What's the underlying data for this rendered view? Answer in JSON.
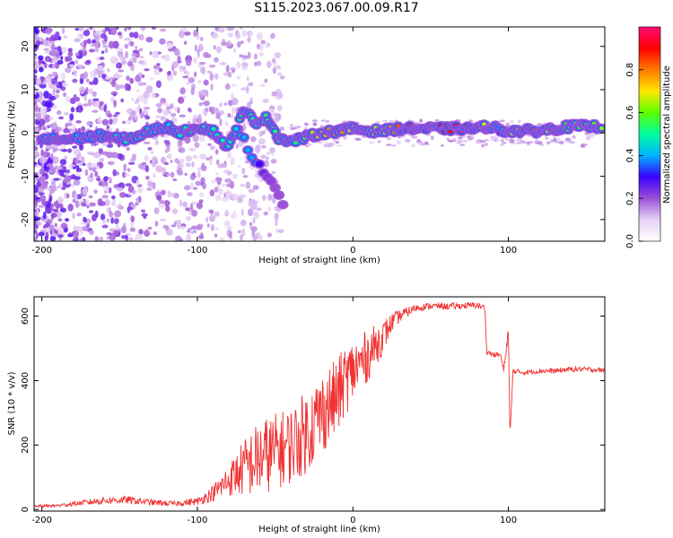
{
  "title": "S115.2023.067.00.09.R17",
  "chart_data": [
    {
      "type": "heatmap",
      "xlabel": "Height of straight line (km)",
      "ylabel": "Frequency (Hz)",
      "xlim": [
        -205,
        162
      ],
      "ylim": [
        -25,
        24.5
      ],
      "xticks": [
        -200,
        -100,
        0,
        100
      ],
      "xtick_labels": [
        "-200",
        "-100",
        "0",
        "100"
      ],
      "yticks": [
        -20,
        -10,
        0,
        10,
        20
      ],
      "ytick_labels": [
        "-20",
        "-10",
        "0",
        "10",
        "20"
      ],
      "colorbar": {
        "label": "Normalized spectral amplitude",
        "range": [
          0,
          1
        ],
        "ticks": [
          0.0,
          0.2,
          0.4,
          0.6,
          0.8
        ],
        "tick_labels": [
          "0.0",
          "0.2",
          "0.4",
          "0.6",
          "0.8"
        ],
        "colors": [
          "#ffffff",
          "#e6d2f5",
          "#9b4fd6",
          "#3a00ff",
          "#00b4ff",
          "#00ffa0",
          "#5aff00",
          "#ffe600",
          "#ff7a00",
          "#ff0000",
          "#ff0a78"
        ]
      },
      "signal_track": [
        {
          "x": -200,
          "y": -1.5,
          "amp": 0.45
        },
        {
          "x": -185,
          "y": -1.5,
          "amp": 0.35
        },
        {
          "x": -170,
          "y": -1.0,
          "amp": 0.45
        },
        {
          "x": -160,
          "y": -0.5,
          "amp": 0.45
        },
        {
          "x": -150,
          "y": -1.5,
          "amp": 0.5
        },
        {
          "x": -140,
          "y": -1.0,
          "amp": 0.55
        },
        {
          "x": -130,
          "y": 0.5,
          "amp": 0.5
        },
        {
          "x": -120,
          "y": 1.5,
          "amp": 0.45
        },
        {
          "x": -110,
          "y": 0.0,
          "amp": 0.5
        },
        {
          "x": -100,
          "y": 1.5,
          "amp": 0.55
        },
        {
          "x": -90,
          "y": 0.5,
          "amp": 0.5
        },
        {
          "x": -80,
          "y": -3.5,
          "amp": 0.5
        },
        {
          "x": -70,
          "y": 5.0,
          "amp": 0.55
        },
        {
          "x": -62,
          "y": 2.5,
          "amp": 0.5
        },
        {
          "x": -55,
          "y": 3.5,
          "amp": 0.55
        },
        {
          "x": -48,
          "y": -1.0,
          "amp": 0.55
        },
        {
          "x": -40,
          "y": -2.0,
          "amp": 0.5
        },
        {
          "x": -30,
          "y": -1.0,
          "amp": 0.6
        },
        {
          "x": -20,
          "y": 0.0,
          "amp": 0.75
        },
        {
          "x": -10,
          "y": 0.5,
          "amp": 0.8
        },
        {
          "x": 0,
          "y": 1.0,
          "amp": 0.7
        },
        {
          "x": 10,
          "y": 0.5,
          "amp": 0.65
        },
        {
          "x": 20,
          "y": 0.5,
          "amp": 0.7
        },
        {
          "x": 30,
          "y": 1.0,
          "amp": 0.85
        },
        {
          "x": 40,
          "y": 1.0,
          "amp": 0.9
        },
        {
          "x": 50,
          "y": 1.0,
          "amp": 0.95
        },
        {
          "x": 60,
          "y": 1.0,
          "amp": 0.9
        },
        {
          "x": 70,
          "y": 1.0,
          "amp": 0.9
        },
        {
          "x": 80,
          "y": 1.0,
          "amp": 0.9
        },
        {
          "x": 86,
          "y": 1.5,
          "amp": 0.6
        },
        {
          "x": 90,
          "y": 1.5,
          "amp": 0.7
        },
        {
          "x": 95,
          "y": 0.5,
          "amp": 0.3
        },
        {
          "x": 100,
          "y": 0.5,
          "amp": 0.7
        },
        {
          "x": 110,
          "y": 0.5,
          "amp": 0.8
        },
        {
          "x": 120,
          "y": 0.5,
          "amp": 0.85
        },
        {
          "x": 130,
          "y": 1.0,
          "amp": 0.6
        },
        {
          "x": 140,
          "y": 1.5,
          "amp": 0.6
        },
        {
          "x": 150,
          "y": 1.5,
          "amp": 0.6
        },
        {
          "x": 160,
          "y": 1.5,
          "amp": 0.65
        }
      ],
      "secondary_track": [
        {
          "x": -75,
          "y": 1.5,
          "amp": 0.45
        },
        {
          "x": -65,
          "y": -5.0,
          "amp": 0.4
        },
        {
          "x": -58,
          "y": -9.0,
          "amp": 0.25
        },
        {
          "x": -50,
          "y": -13.0,
          "amp": 0.2
        },
        {
          "x": -45,
          "y": -16.5,
          "amp": 0.2
        }
      ]
    },
    {
      "type": "line",
      "xlabel": "Height of straight line (km)",
      "ylabel": "SNR (10 * v/v)",
      "xlim": [
        -205,
        162
      ],
      "ylim": [
        -5,
        660
      ],
      "xticks": [
        -200,
        -100,
        0,
        100
      ],
      "xtick_labels": [
        "-200",
        "-100",
        "0",
        "100"
      ],
      "yticks": [
        0,
        200,
        400,
        600
      ],
      "ytick_labels": [
        "0",
        "200",
        "400",
        "600"
      ],
      "color": "#f03232",
      "series": [
        {
          "x": [
            -205,
            -190,
            -175,
            -160,
            -145,
            -130,
            -115,
            -100,
            -90,
            -80,
            -70,
            -60,
            -50,
            -40,
            -30,
            -20,
            -10,
            -5,
            0,
            10,
            20,
            25,
            30,
            40,
            50,
            60,
            70,
            80,
            85,
            86,
            90,
            95,
            97,
            100,
            101,
            103,
            110,
            120,
            130,
            140,
            150,
            162
          ],
          "y": [
            10,
            12,
            20,
            28,
            30,
            22,
            18,
            25,
            50,
            90,
            130,
            160,
            180,
            200,
            240,
            300,
            350,
            400,
            430,
            480,
            540,
            580,
            600,
            625,
            632,
            630,
            632,
            634,
            625,
            490,
            480,
            480,
            430,
            560,
            220,
            430,
            425,
            430,
            430,
            435,
            435,
            432
          ],
          "noise": [
            4,
            5,
            8,
            12,
            12,
            10,
            8,
            12,
            25,
            50,
            90,
            120,
            120,
            120,
            130,
            130,
            120,
            110,
            100,
            80,
            50,
            30,
            20,
            12,
            10,
            10,
            10,
            10,
            10,
            8,
            8,
            8,
            10,
            20,
            10,
            8,
            8,
            8,
            8,
            8,
            8,
            8
          ]
        }
      ]
    }
  ]
}
